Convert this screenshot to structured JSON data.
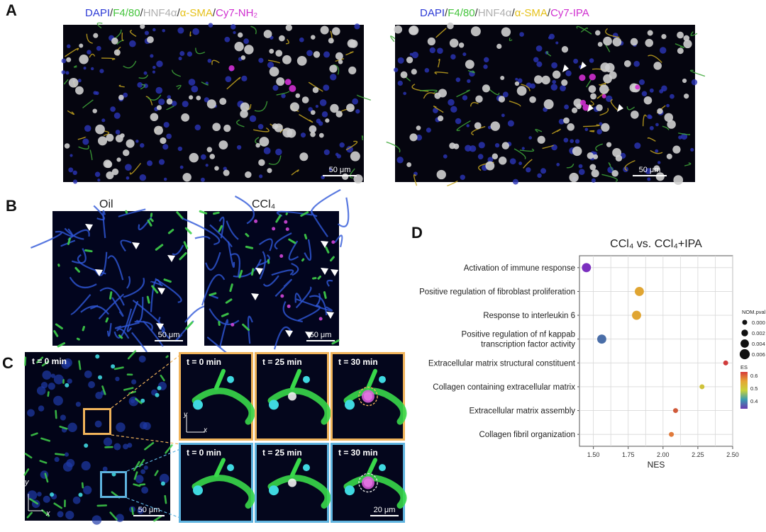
{
  "panels": {
    "A": {
      "letter": "A",
      "left_label": [
        "DAPI",
        "/",
        "F4/80",
        "/",
        "HNF4α",
        "/",
        "α-SMA",
        "/",
        "Cy7-NH₂"
      ],
      "right_label": [
        "DAPI",
        "/",
        "F4/80",
        "/",
        "HNF4α",
        "/",
        "α-SMA",
        "/",
        "Cy7-IPA"
      ],
      "scale_left": "50 μm",
      "scale_right": "50 μm"
    },
    "B": {
      "letter": "B",
      "left_title": "Oil",
      "right_title": "CCl₄",
      "scale_left": "50 μm",
      "scale_right": "50 μm"
    },
    "C": {
      "letter": "C",
      "main_time": "t = 0 min",
      "main_scale": "50 μm",
      "axis_y": "y",
      "axis_x": "x",
      "times": [
        "t = 0 min",
        "t = 25 min",
        "t = 30 min"
      ],
      "inset_scale": "20 μm"
    },
    "D": {
      "letter": "D"
    }
  },
  "chart_data": {
    "type": "scatter",
    "title": "CCl₄ vs. CCl₄+IPA",
    "xlabel": "NES",
    "ylabel": "",
    "xlim": [
      1.4,
      2.5
    ],
    "xticks": [
      "1.50",
      "1.75",
      "2.00",
      "2.25",
      "2.50"
    ],
    "xtick_values": [
      1.5,
      1.75,
      2.0,
      2.25,
      2.5
    ],
    "grid": true,
    "categories": [
      "Activation of immune response",
      "Positive regulation of fibroblast proliferation",
      "Response to interleukin 6",
      "Positive regulation of nf kappab transcription factor activity",
      "Extracellular matrix structural constituent",
      "Collagen containing extracellular matrix",
      "Extracellular matrix assembly",
      "Collagen fibril organization"
    ],
    "category_lines": [
      [
        "Activation of immune response"
      ],
      [
        "Positive regulation of fibroblast proliferation"
      ],
      [
        "Response to interleukin 6"
      ],
      [
        "Positive regulation of nf kappab",
        "transcription factor activity"
      ],
      [
        "Extracellular matrix structural constituent"
      ],
      [
        "Collagen containing extracellular matrix"
      ],
      [
        "Extracellular matrix assembly"
      ],
      [
        "Collagen fibril organization"
      ]
    ],
    "points": [
      {
        "nes": 1.45,
        "es": 0.33,
        "pval": 0.005,
        "color": "#7b2fbf"
      },
      {
        "nes": 1.83,
        "es": 0.52,
        "pval": 0.005,
        "color": "#e0a532"
      },
      {
        "nes": 1.81,
        "es": 0.53,
        "pval": 0.005,
        "color": "#e0a532"
      },
      {
        "nes": 1.56,
        "es": 0.38,
        "pval": 0.005,
        "color": "#4a6ea8"
      },
      {
        "nes": 2.45,
        "es": 0.63,
        "pval": 0.0,
        "color": "#d03b3b"
      },
      {
        "nes": 2.28,
        "es": 0.5,
        "pval": 0.0,
        "color": "#cfc23a"
      },
      {
        "nes": 2.09,
        "es": 0.6,
        "pval": 0.0,
        "color": "#d05a3a"
      },
      {
        "nes": 2.06,
        "es": 0.56,
        "pval": 0.0,
        "color": "#e07a3a"
      }
    ],
    "size_legend": {
      "title": "NOM.pval",
      "labels": [
        "0.000",
        "0.002",
        "0.004",
        "0.006"
      ]
    },
    "color_legend": {
      "title": "ES",
      "labels": [
        "0.6",
        "0.5",
        "0.4"
      ],
      "colors": [
        "#d63a3a",
        "#e6a533",
        "#c8d23a",
        "#3a9bb0",
        "#6a3ab0"
      ]
    }
  }
}
